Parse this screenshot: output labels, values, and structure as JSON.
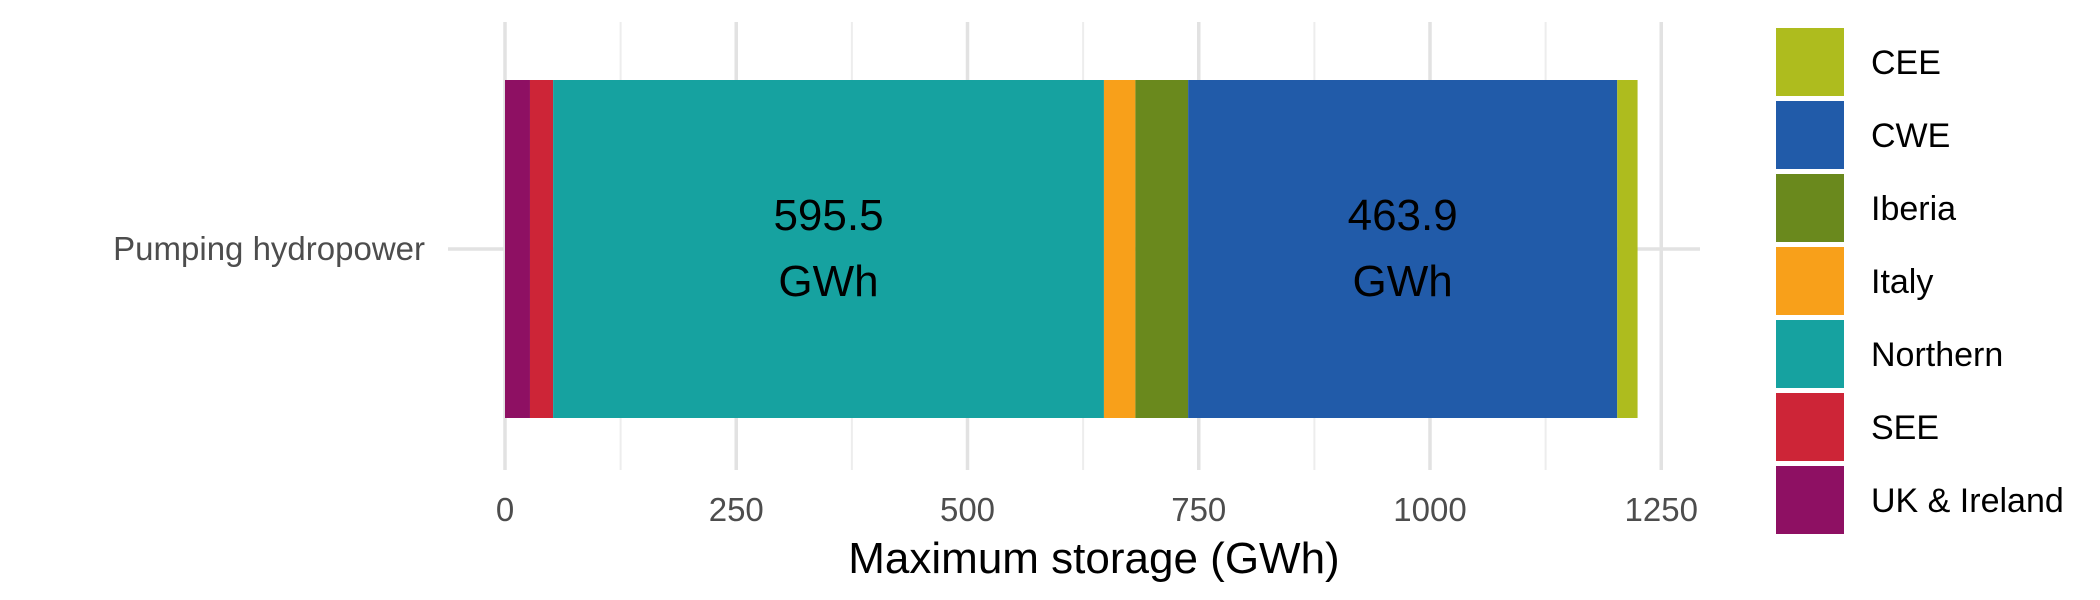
{
  "chart_data": {
    "type": "bar",
    "orientation": "horizontal",
    "stacked": true,
    "categories": [
      "Pumping hydropower"
    ],
    "xlabel": "Maximum storage (GWh)",
    "ylabel": "",
    "xlim": [
      0,
      1260
    ],
    "x_ticks": [
      0,
      250,
      500,
      750,
      1000,
      1250
    ],
    "x_tick_labels": [
      "0",
      "250",
      "500",
      "750",
      "1000",
      "1250"
    ],
    "grid": true,
    "legend_position": "right",
    "series": [
      {
        "name": "UK & Ireland",
        "values": [
          27
        ],
        "color": "#8e1063"
      },
      {
        "name": "SEE",
        "values": [
          25
        ],
        "color": "#cd2537"
      },
      {
        "name": "Northern",
        "values": [
          595.5
        ],
        "color": "#16a2a0",
        "label_line1": "595.5",
        "label_line2": "GWh"
      },
      {
        "name": "Italy",
        "values": [
          34
        ],
        "color": "#f8a01a"
      },
      {
        "name": "Iberia",
        "values": [
          57
        ],
        "color": "#6a891d"
      },
      {
        "name": "CWE",
        "values": [
          463.9
        ],
        "color": "#215ba9",
        "label_line1": "463.9",
        "label_line2": "GWh"
      },
      {
        "name": "CEE",
        "values": [
          22
        ],
        "color": "#aebc1e"
      }
    ],
    "legend_order": [
      "CEE",
      "CWE",
      "Iberia",
      "Italy",
      "Northern",
      "SEE",
      "UK & Ireland"
    ]
  }
}
